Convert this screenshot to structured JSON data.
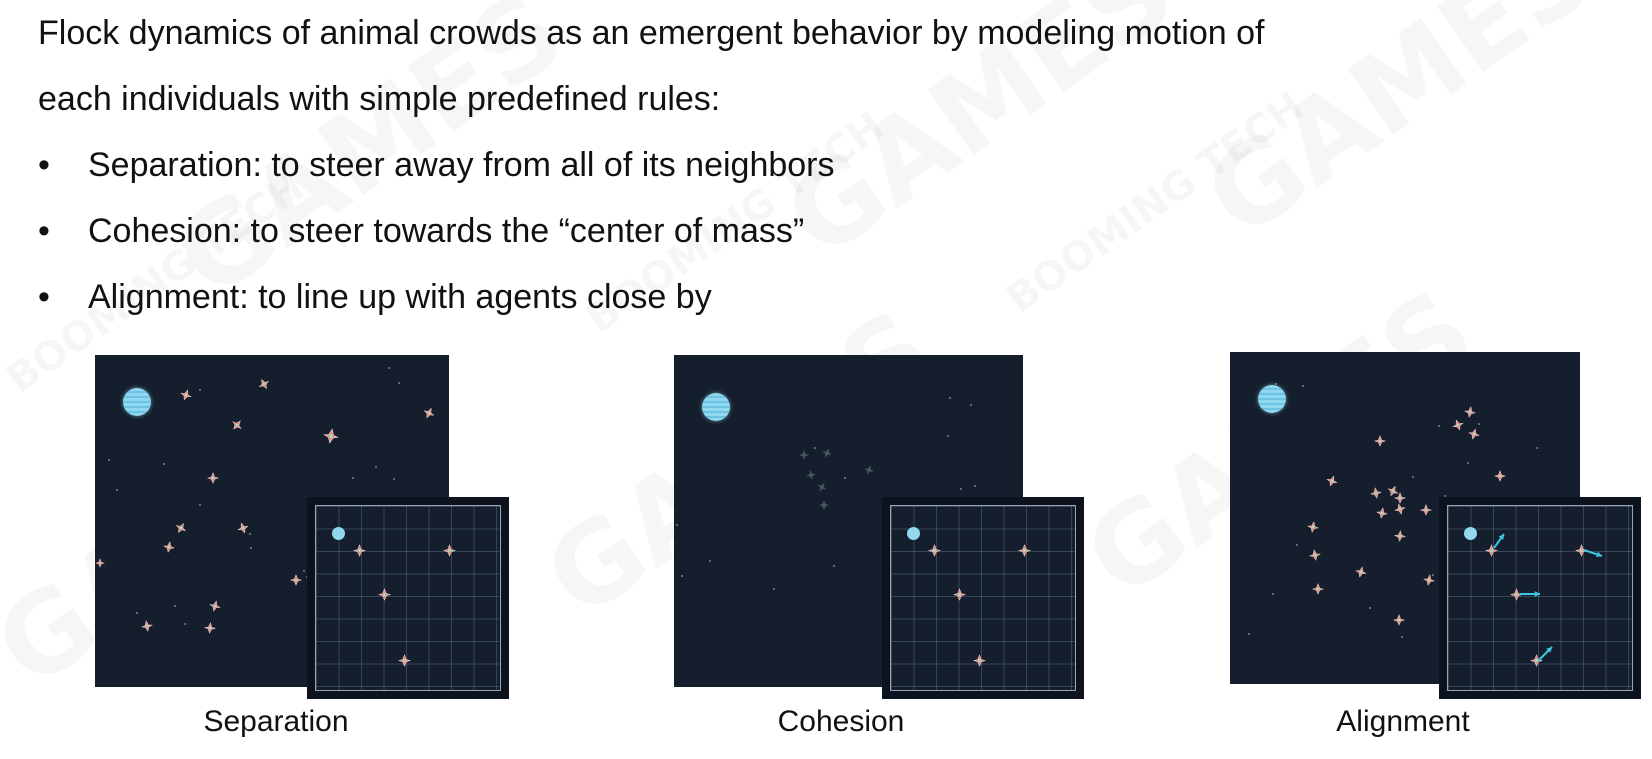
{
  "intro": {
    "line1": "Flock dynamics of animal crowds as an emergent behavior by modeling motion of",
    "line2": "each individuals with simple predefined rules:"
  },
  "rules": [
    {
      "bullet": "•",
      "text": "Separation: to steer away from all of its neighbors"
    },
    {
      "bullet": "•",
      "text": "Cohesion: to steer towards the “center of mass”"
    },
    {
      "bullet": "•",
      "text": "Alignment: to line up with agents close by"
    }
  ],
  "figures": [
    {
      "caption": "Separation",
      "boids_visible": true,
      "direction_arrows": false
    },
    {
      "caption": "Cohesion",
      "boids_visible": false,
      "direction_arrows": false
    },
    {
      "caption": "Alignment",
      "boids_visible": true,
      "direction_arrows": true
    }
  ],
  "watermark": {
    "brand": "GAMES",
    "studio": "BOOMING TECH"
  },
  "colors": {
    "sky": "#141e2d",
    "planet": "#8fd8ef",
    "boid": "#e8827a",
    "arrow": "#3fc6e0"
  }
}
